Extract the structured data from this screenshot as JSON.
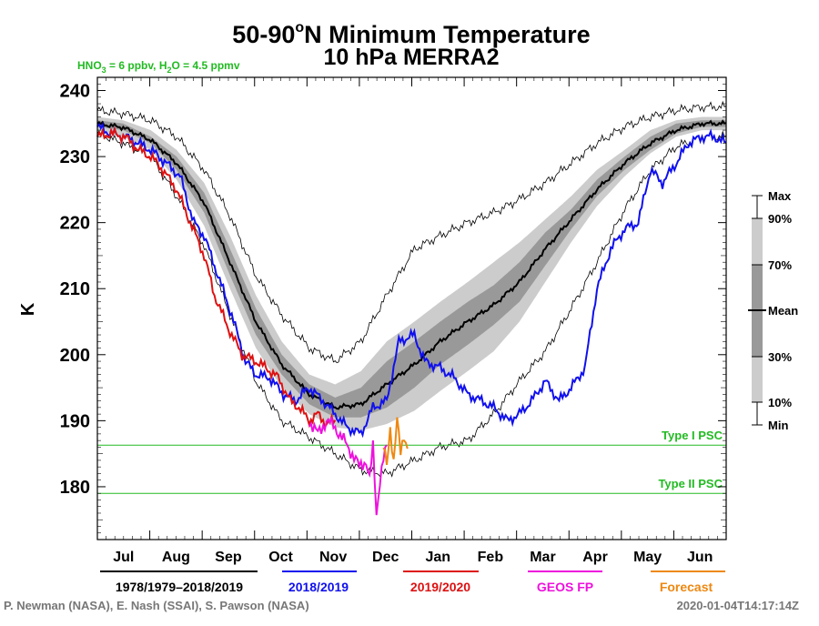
{
  "chart_data": {
    "type": "line",
    "title": {
      "line1_prefix": "50-90",
      "line1_deg": "o",
      "line1_suffix": "N Minimum Temperature",
      "line2": "10 hPa   MERRA2"
    },
    "subtitle": {
      "hno3": "HNO",
      "hno3_sub": "3",
      "hno3_val": " = 6 ppbv, H",
      "h2o_sub": "2",
      "h2o_val": "O = 4.5 ppmv",
      "color": "#22bb22"
    },
    "ylabel": "K",
    "ylim": [
      172,
      242
    ],
    "yticks": [
      "180",
      "190",
      "200",
      "210",
      "220",
      "230",
      "240"
    ],
    "x_months": [
      "Jul",
      "Aug",
      "Sep",
      "Oct",
      "Nov",
      "Dec",
      "Jan",
      "Feb",
      "Mar",
      "Apr",
      "May",
      "Jun"
    ],
    "thresholds": [
      {
        "name": "Type I PSC",
        "value": 186.3,
        "color": "#22bb22"
      },
      {
        "name": "Type II PSC",
        "value": 179.0,
        "color": "#22bb22"
      }
    ],
    "percentile_legend": [
      "Max",
      "90%",
      "70%",
      "Mean",
      "30%",
      "10%",
      "Min"
    ],
    "climatology": {
      "days": [
        0,
        15,
        31,
        46,
        62,
        77,
        92,
        107,
        123,
        138,
        153,
        168,
        184,
        199,
        215,
        230,
        245,
        260,
        275,
        290,
        306,
        321,
        336,
        351,
        365
      ],
      "mean": [
        235,
        234.4,
        232.5,
        229,
        223,
        214,
        205,
        198.5,
        194,
        192,
        192.5,
        195.5,
        198.5,
        202,
        205,
        207.5,
        211,
        216,
        220.5,
        225,
        229,
        232,
        234,
        235,
        235
      ],
      "p90": [
        236,
        235.5,
        234,
        231,
        226,
        218,
        209,
        202,
        197,
        195.5,
        197.5,
        202,
        205,
        208,
        211,
        214,
        217,
        220.5,
        224,
        228,
        231,
        234,
        235.5,
        236,
        236
      ],
      "p70": [
        235.5,
        235,
        233,
        230,
        224.5,
        216,
        207,
        200,
        195.5,
        193.5,
        195,
        199,
        202,
        205,
        208,
        210.5,
        214,
        218.5,
        222,
        226.5,
        230,
        233,
        235,
        235.5,
        235.5
      ],
      "p30": [
        234.5,
        234,
        232,
        228,
        221.5,
        212,
        203,
        197,
        192.5,
        190.5,
        190.5,
        192,
        195,
        198.5,
        201.5,
        204.5,
        208,
        213.5,
        219,
        224,
        228,
        231,
        233.5,
        234.5,
        234.5
      ],
      "p10": [
        234,
        233,
        231,
        226.5,
        219.5,
        210,
        201,
        195,
        191,
        189,
        188.5,
        189.5,
        191.5,
        194.5,
        197.5,
        200.5,
        205,
        211,
        217,
        222.5,
        227,
        230.5,
        233,
        234,
        234
      ],
      "max": [
        237,
        236.5,
        235.5,
        233,
        228,
        221,
        212,
        206,
        201,
        199,
        202,
        209,
        216,
        218,
        220,
        221.5,
        223.5,
        226,
        229,
        232,
        234.5,
        236,
        237,
        237.5,
        237.5
      ],
      "min": [
        233.5,
        232,
        230,
        224,
        216.5,
        206,
        196,
        190,
        187.5,
        185,
        182.5,
        182,
        184,
        186,
        187,
        191,
        196,
        200.5,
        207,
        214,
        222,
        228,
        231.5,
        233,
        233
      ]
    },
    "series": [
      {
        "name": "1978/1979–2018/2019",
        "color": "#000000",
        "ref": "climatology.mean"
      },
      {
        "name": "2018/2019",
        "color": "#1010ee",
        "days": [
          0,
          8,
          16,
          24,
          31,
          40,
          48,
          56,
          62,
          70,
          78,
          86,
          92,
          100,
          108,
          115,
          123,
          131,
          138,
          145,
          153,
          160,
          168,
          175,
          184,
          190,
          199,
          207,
          215,
          223,
          230,
          238,
          245,
          252,
          260,
          268,
          275,
          283,
          290,
          298,
          306,
          314,
          321,
          328,
          336,
          343,
          351,
          358,
          365
        ],
        "values": [
          234.5,
          233.5,
          233,
          232,
          231,
          229,
          227,
          220,
          218,
          212,
          206,
          199,
          197,
          196.5,
          194,
          193,
          195,
          193,
          191,
          189,
          188,
          192,
          193,
          202,
          203,
          199,
          198,
          196.5,
          194,
          193,
          192,
          190,
          191,
          193,
          196,
          193,
          195,
          198,
          210,
          216,
          219,
          220,
          228,
          226,
          229,
          232,
          233,
          233,
          232
        ]
      },
      {
        "name": "2019/2020",
        "color": "#dd1111",
        "days": [
          0,
          8,
          16,
          24,
          31,
          38,
          46,
          54,
          62,
          68,
          76,
          84,
          92,
          98,
          105,
          112,
          117,
          123,
          128,
          133,
          138
        ],
        "values": [
          233,
          233.5,
          233,
          231,
          230,
          228,
          225,
          220,
          215,
          209,
          204,
          200,
          199,
          198,
          196.5,
          193,
          192,
          190,
          191,
          189.5,
          190
        ]
      },
      {
        "name": "GEOS FP",
        "color": "#ee11dd",
        "days": [
          123,
          128,
          133,
          138,
          143,
          148,
          152,
          156,
          158,
          160,
          162,
          164,
          166,
          168
        ],
        "values": [
          190,
          188,
          190,
          189,
          187,
          185,
          183,
          184,
          181,
          186,
          176,
          181,
          184,
          186
        ]
      },
      {
        "name": "Forecast",
        "color": "#ee8811",
        "days": [
          166,
          168,
          170,
          172,
          174,
          176,
          178,
          180
        ],
        "values": [
          186,
          183,
          189,
          184,
          190,
          185,
          188,
          186
        ]
      }
    ],
    "credit": "P. Newman (NASA), E. Nash (SSAI), S. Pawson (NASA)",
    "timestamp": "2020-01-04T14:17:14Z",
    "band_colors": {
      "outer": "#cccccc",
      "inner": "#999999",
      "frame": "#000000"
    }
  }
}
